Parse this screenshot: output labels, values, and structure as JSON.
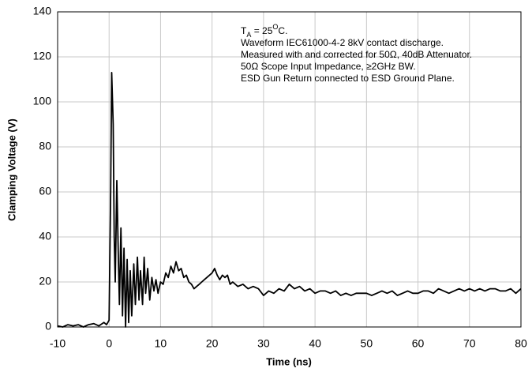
{
  "chart_data": {
    "type": "line",
    "xlabel": "Time (ns)",
    "ylabel": "Clamping Voltage (V)",
    "annotation": [
      [
        {
          "text": "T"
        },
        {
          "text": "A",
          "shift": "sub"
        },
        {
          "text": " = 25"
        },
        {
          "text": "O",
          "shift": "super"
        },
        {
          "text": "C."
        }
      ],
      [
        {
          "text": "Waveform IEC61000-4-2 8kV contact discharge."
        }
      ],
      [
        {
          "text": "Measured with and corrected for 50Ω, 40dB Attenuator."
        }
      ],
      [
        {
          "text": "50Ω Scope Input Impedance, ≥2GHz BW."
        }
      ],
      [
        {
          "text": "ESD Gun Return connected to ESD Ground Plane."
        }
      ]
    ],
    "x": [
      -10,
      -9,
      -8,
      -7,
      -6,
      -5,
      -4,
      -3,
      -2,
      -1,
      -0.5,
      0,
      0.3,
      0.5,
      0.8,
      1,
      1.2,
      1.5,
      1.8,
      2,
      2.3,
      2.6,
      2.9,
      3.2,
      3.5,
      3.8,
      4.1,
      4.4,
      4.8,
      5.1,
      5.5,
      5.8,
      6.1,
      6.5,
      6.8,
      7.1,
      7.5,
      7.9,
      8.3,
      8.7,
      9.1,
      9.5,
      10,
      10.5,
      11,
      11.5,
      12,
      12.5,
      13,
      13.5,
      14,
      14.5,
      15,
      15.5,
      16,
      16.5,
      17,
      17.5,
      18,
      18.5,
      19,
      19.5,
      20,
      20.5,
      21,
      21.5,
      22,
      22.5,
      23,
      23.5,
      24,
      25,
      26,
      27,
      28,
      29,
      30,
      31,
      32,
      33,
      34,
      35,
      36,
      37,
      38,
      39,
      40,
      41,
      42,
      43,
      44,
      45,
      46,
      47,
      48,
      49,
      50,
      51,
      52,
      53,
      54,
      55,
      56,
      57,
      58,
      59,
      60,
      61,
      62,
      63,
      64,
      65,
      66,
      67,
      68,
      69,
      70,
      71,
      72,
      73,
      74,
      75,
      76,
      77,
      78,
      79,
      80
    ],
    "series": [
      {
        "name": "Clamping Voltage",
        "color": "#000000",
        "values": [
          0.5,
          0,
          1,
          0.5,
          1,
          0,
          1,
          1.5,
          0.5,
          2,
          1,
          3,
          60,
          113,
          90,
          40,
          20,
          65,
          30,
          10,
          44,
          5,
          35,
          0,
          30,
          2,
          25,
          5,
          28,
          10,
          31,
          12,
          25,
          10,
          31,
          15,
          26,
          12,
          22,
          16,
          21,
          15,
          20,
          19,
          24,
          22,
          27,
          24,
          29,
          25,
          26,
          22,
          23,
          20,
          19,
          17,
          18,
          19,
          20,
          21,
          22,
          23,
          24,
          26,
          23,
          21,
          23,
          22,
          23,
          19,
          20,
          18,
          19,
          17,
          18,
          17,
          14,
          16,
          15,
          17,
          16,
          19,
          17,
          18,
          16,
          17,
          15,
          16,
          16,
          15,
          16,
          14,
          15,
          14,
          15,
          15,
          15,
          14,
          15,
          16,
          15,
          16,
          14,
          15,
          16,
          15,
          15,
          16,
          16,
          15,
          17,
          16,
          15,
          16,
          17,
          16,
          17,
          16,
          17,
          16,
          17,
          17,
          16,
          16,
          17,
          15,
          17
        ]
      }
    ],
    "xlim": [
      -10,
      80
    ],
    "xticks": [
      -10,
      0,
      10,
      20,
      30,
      40,
      50,
      60,
      70,
      80
    ],
    "ylim": [
      0,
      140
    ],
    "yticks": [
      0,
      20,
      40,
      60,
      80,
      100,
      120,
      140
    ],
    "grid": true
  }
}
